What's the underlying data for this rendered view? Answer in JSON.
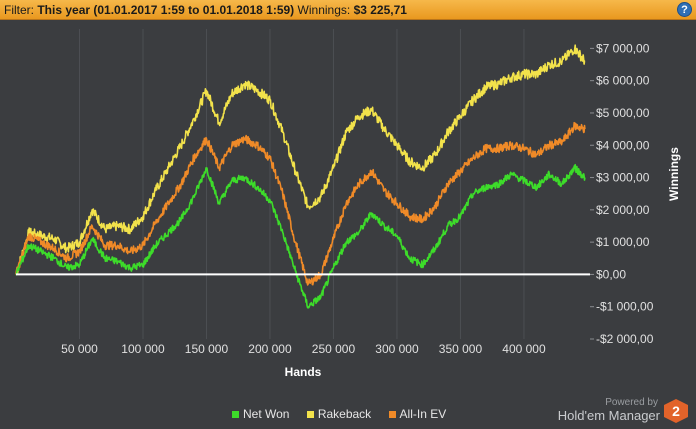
{
  "filter": {
    "label": "Filter:",
    "value": "This year (01.01.2017 1:59 to 01.01.2018 1:59)",
    "winnings_label": "Winnings:",
    "winnings_value": "$3 225,71",
    "help_symbol": "?"
  },
  "colors": {
    "background": "#3b3d40",
    "net_won": "#3ddc2a",
    "rakeback": "#f2e24b",
    "allin_ev": "#ef8a28",
    "zero_line": "#ffffff"
  },
  "chart_data": {
    "type": "line",
    "title": "",
    "xlabel": "Hands",
    "ylabel": "Winnings",
    "xlim": [
      0,
      452000
    ],
    "ylim": [
      -2000,
      7600
    ],
    "x_ticks": [
      50000,
      100000,
      150000,
      200000,
      250000,
      300000,
      350000,
      400000
    ],
    "x_tick_labels": [
      "50 000",
      "100 000",
      "150 000",
      "200 000",
      "250 000",
      "300 000",
      "350 000",
      "400 000"
    ],
    "y_ticks": [
      7000,
      6000,
      5000,
      4000,
      3000,
      2000,
      1000,
      0,
      -1000,
      -2000
    ],
    "y_tick_labels": [
      "$7 000,00",
      "$6 000,00",
      "$5 000,00",
      "$4 000,00",
      "$3 000,00",
      "$2 000,00",
      "$1 000,00",
      "$0,00",
      "-$1 000,00",
      "-$2 000,00"
    ],
    "grid": "vertical",
    "legend_position": "bottom",
    "series": [
      {
        "name": "Net Won",
        "color": "#3ddc2a",
        "x": [
          0,
          10000,
          20000,
          30000,
          40000,
          50000,
          60000,
          70000,
          80000,
          90000,
          100000,
          110000,
          120000,
          130000,
          140000,
          150000,
          160000,
          170000,
          180000,
          190000,
          200000,
          210000,
          220000,
          230000,
          240000,
          250000,
          260000,
          270000,
          280000,
          290000,
          300000,
          310000,
          320000,
          330000,
          340000,
          350000,
          360000,
          370000,
          380000,
          390000,
          400000,
          410000,
          420000,
          430000,
          440000,
          448000
        ],
        "y": [
          0,
          900,
          700,
          500,
          200,
          300,
          1100,
          500,
          400,
          200,
          300,
          900,
          1300,
          1700,
          2400,
          3300,
          2200,
          2900,
          3000,
          2700,
          2300,
          1300,
          100,
          -1000,
          -700,
          200,
          1000,
          1300,
          1900,
          1500,
          1200,
          500,
          300,
          800,
          1500,
          1800,
          2500,
          2700,
          2800,
          3100,
          2900,
          2700,
          3100,
          2800,
          3300,
          3000
        ]
      },
      {
        "name": "Rakeback",
        "color": "#f2e24b",
        "x": [
          0,
          10000,
          20000,
          30000,
          40000,
          50000,
          60000,
          70000,
          80000,
          90000,
          100000,
          110000,
          120000,
          130000,
          140000,
          150000,
          160000,
          170000,
          180000,
          190000,
          200000,
          210000,
          220000,
          230000,
          240000,
          250000,
          260000,
          270000,
          280000,
          290000,
          300000,
          310000,
          320000,
          330000,
          340000,
          350000,
          360000,
          370000,
          380000,
          390000,
          400000,
          410000,
          420000,
          430000,
          440000,
          448000
        ],
        "y": [
          0,
          1300,
          1200,
          1100,
          800,
          1000,
          2000,
          1400,
          1500,
          1400,
          1800,
          2600,
          3300,
          4000,
          4800,
          5700,
          4700,
          5600,
          5900,
          5700,
          5400,
          4400,
          3200,
          2100,
          2400,
          3300,
          4400,
          4900,
          5100,
          4500,
          4000,
          3500,
          3300,
          3700,
          4400,
          4900,
          5400,
          5800,
          5900,
          6100,
          6200,
          6200,
          6500,
          6600,
          7000,
          6600
        ]
      },
      {
        "name": "All-In EV",
        "color": "#ef8a28",
        "x": [
          0,
          10000,
          20000,
          30000,
          40000,
          50000,
          60000,
          70000,
          80000,
          90000,
          100000,
          110000,
          120000,
          130000,
          140000,
          150000,
          160000,
          170000,
          180000,
          190000,
          200000,
          210000,
          220000,
          230000,
          240000,
          250000,
          260000,
          270000,
          280000,
          290000,
          300000,
          310000,
          320000,
          330000,
          340000,
          350000,
          360000,
          370000,
          380000,
          390000,
          400000,
          410000,
          420000,
          430000,
          440000,
          448000
        ],
        "y": [
          0,
          1200,
          1000,
          800,
          500,
          700,
          1500,
          900,
          900,
          700,
          900,
          1600,
          2200,
          2800,
          3600,
          4200,
          3300,
          4000,
          4200,
          4000,
          3600,
          2500,
          1000,
          -300,
          0,
          1100,
          2200,
          2800,
          3200,
          2600,
          2200,
          1800,
          1700,
          2100,
          2800,
          3200,
          3600,
          3900,
          3900,
          4000,
          3900,
          3700,
          4000,
          4100,
          4600,
          4500
        ]
      }
    ]
  },
  "legend": {
    "items": [
      {
        "label": "Net Won",
        "color": "#3ddc2a"
      },
      {
        "label": "Rakeback",
        "color": "#f2e24b"
      },
      {
        "label": "All-In EV",
        "color": "#ef8a28"
      }
    ]
  },
  "branding": {
    "powered": "Powered by",
    "name": "Hold'em Manager",
    "logo_text": "2"
  }
}
